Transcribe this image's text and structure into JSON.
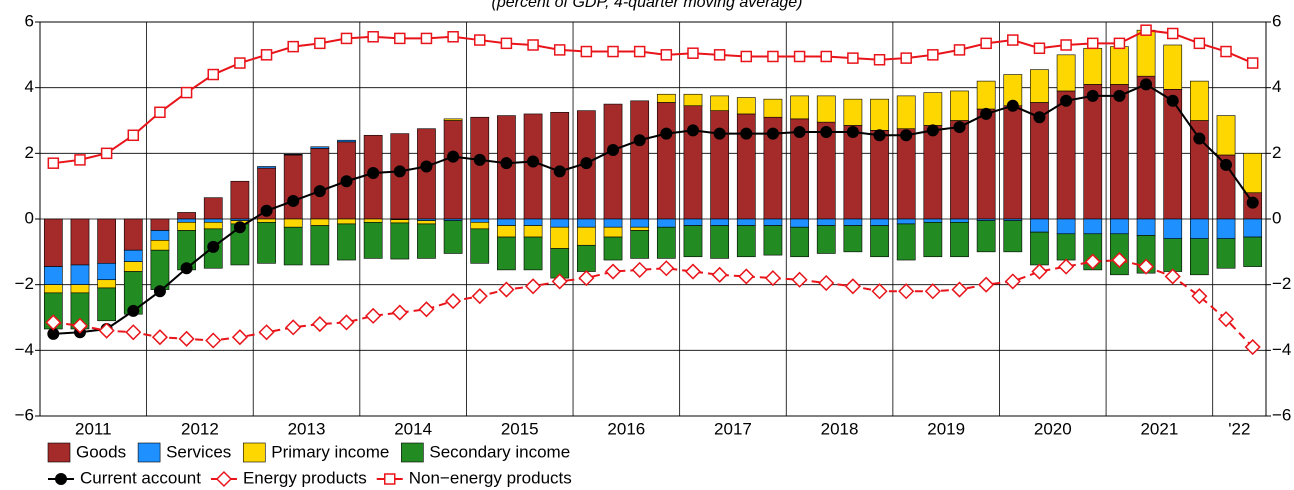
{
  "chart_data": {
    "type": "bar",
    "title": "(percent of GDP, 4-quarter moving average)",
    "categories": [
      "2011",
      null,
      null,
      null,
      "2012",
      null,
      null,
      null,
      "2013",
      null,
      null,
      null,
      "2014",
      null,
      null,
      null,
      "2015",
      null,
      null,
      null,
      "2016",
      null,
      null,
      null,
      "2017",
      null,
      null,
      null,
      "2018",
      null,
      null,
      null,
      "2019",
      null,
      null,
      null,
      "2020",
      null,
      null,
      null,
      "2021",
      null,
      null,
      null,
      "'22",
      null
    ],
    "ylim": [
      -6,
      6
    ],
    "yticks": [
      {
        "value": -6,
        "label": "−6"
      },
      {
        "value": -4,
        "label": "−4"
      },
      {
        "value": -2,
        "label": "−2"
      },
      0,
      2,
      4,
      6
    ],
    "grid": true,
    "series": [
      {
        "name": "Goods",
        "type": "bar",
        "color": "#a52a2a",
        "values": [
          -1.45,
          -1.4,
          -1.35,
          -0.95,
          -0.35,
          0.2,
          0.65,
          1.15,
          1.55,
          1.95,
          2.15,
          2.35,
          2.55,
          2.6,
          2.75,
          3.0,
          3.1,
          3.15,
          3.2,
          3.25,
          3.3,
          3.5,
          3.6,
          3.55,
          3.45,
          3.3,
          3.2,
          3.1,
          3.05,
          2.95,
          2.85,
          2.7,
          2.75,
          2.85,
          3.0,
          3.35,
          3.45,
          3.55,
          3.9,
          4.1,
          4.1,
          4.35,
          3.95,
          3.0,
          1.95,
          0.8
        ]
      },
      {
        "name": "Services",
        "type": "bar",
        "color": "#1e90ff",
        "values": [
          -0.55,
          -0.6,
          -0.5,
          -0.35,
          -0.3,
          -0.1,
          -0.1,
          -0.05,
          0.05,
          0.02,
          0.05,
          0.05,
          0,
          -0.02,
          -0.05,
          -0.05,
          -0.1,
          -0.2,
          -0.2,
          -0.25,
          -0.25,
          -0.25,
          -0.25,
          -0.25,
          -0.2,
          -0.2,
          -0.2,
          -0.2,
          -0.25,
          -0.2,
          -0.2,
          -0.2,
          -0.15,
          -0.1,
          -0.1,
          -0.05,
          -0.05,
          -0.4,
          -0.45,
          -0.45,
          -0.45,
          -0.5,
          -0.6,
          -0.6,
          -0.6,
          -0.55
        ]
      },
      {
        "name": "Primary income",
        "type": "bar",
        "color": "#ffd700",
        "values": [
          -0.25,
          -0.25,
          -0.25,
          -0.3,
          -0.3,
          -0.25,
          -0.2,
          -0.1,
          -0.1,
          -0.25,
          -0.2,
          -0.15,
          -0.1,
          -0.1,
          -0.1,
          0.05,
          -0.2,
          -0.35,
          -0.35,
          -0.65,
          -0.55,
          -0.3,
          -0.1,
          0.25,
          0.35,
          0.45,
          0.5,
          0.55,
          0.7,
          0.8,
          0.8,
          0.95,
          1.0,
          1.0,
          0.9,
          0.85,
          0.95,
          1.0,
          1.1,
          1.1,
          1.15,
          1.4,
          1.35,
          1.2,
          1.2,
          1.2
        ]
      },
      {
        "name": "Secondary income",
        "type": "bar",
        "color": "#228b22",
        "values": [
          -1.1,
          -1.1,
          -1.0,
          -1.3,
          -1.2,
          -1.2,
          -1.2,
          -1.25,
          -1.25,
          -1.15,
          -1.2,
          -1.1,
          -1.1,
          -1.1,
          -1.05,
          -1.0,
          -1.05,
          -1.0,
          -1.0,
          -0.9,
          -0.8,
          -0.7,
          -0.85,
          -0.95,
          -0.95,
          -1.0,
          -0.95,
          -0.9,
          -0.9,
          -0.85,
          -0.8,
          -0.95,
          -1.1,
          -1.05,
          -1.05,
          -0.95,
          -0.95,
          -1.0,
          -0.8,
          -1.1,
          -1.25,
          -1.15,
          -1.0,
          -1.1,
          -0.9,
          -0.9
        ]
      },
      {
        "name": "Current account",
        "type": "line",
        "marker": "circle",
        "color": "#000000",
        "values": [
          -3.5,
          -3.45,
          -3.35,
          -2.8,
          -2.2,
          -1.5,
          -0.85,
          -0.25,
          0.25,
          0.55,
          0.85,
          1.15,
          1.4,
          1.45,
          1.6,
          1.9,
          1.8,
          1.7,
          1.75,
          1.45,
          1.7,
          2.1,
          2.4,
          2.6,
          2.7,
          2.6,
          2.6,
          2.6,
          2.65,
          2.65,
          2.65,
          2.55,
          2.55,
          2.7,
          2.8,
          3.2,
          3.45,
          3.1,
          3.6,
          3.75,
          3.75,
          4.1,
          3.6,
          2.45,
          1.65,
          0.5
        ]
      },
      {
        "name": "Energy products",
        "type": "line",
        "marker": "diamond",
        "dashed": true,
        "color": "#e8141a",
        "values": [
          -3.15,
          -3.25,
          -3.4,
          -3.45,
          -3.6,
          -3.65,
          -3.7,
          -3.6,
          -3.45,
          -3.3,
          -3.2,
          -3.15,
          -2.95,
          -2.85,
          -2.75,
          -2.5,
          -2.35,
          -2.15,
          -2.05,
          -1.9,
          -1.8,
          -1.6,
          -1.55,
          -1.5,
          -1.6,
          -1.7,
          -1.75,
          -1.8,
          -1.85,
          -1.95,
          -2.05,
          -2.2,
          -2.2,
          -2.2,
          -2.15,
          -2.0,
          -1.9,
          -1.6,
          -1.45,
          -1.3,
          -1.25,
          -1.45,
          -1.75,
          -2.35,
          -3.05,
          -3.9
        ]
      },
      {
        "name": "Non−energy products",
        "type": "line",
        "marker": "square",
        "color": "#e8141a",
        "values": [
          1.7,
          1.8,
          2.0,
          2.55,
          3.25,
          3.85,
          4.4,
          4.75,
          5.0,
          5.25,
          5.35,
          5.5,
          5.55,
          5.5,
          5.5,
          5.55,
          5.45,
          5.35,
          5.3,
          5.15,
          5.1,
          5.1,
          5.1,
          5.0,
          5.05,
          5.0,
          4.95,
          4.95,
          4.95,
          4.95,
          4.9,
          4.85,
          4.9,
          5.0,
          5.15,
          5.35,
          5.45,
          5.2,
          5.3,
          5.35,
          5.35,
          5.75,
          5.65,
          5.35,
          5.1,
          4.75
        ]
      }
    ]
  }
}
